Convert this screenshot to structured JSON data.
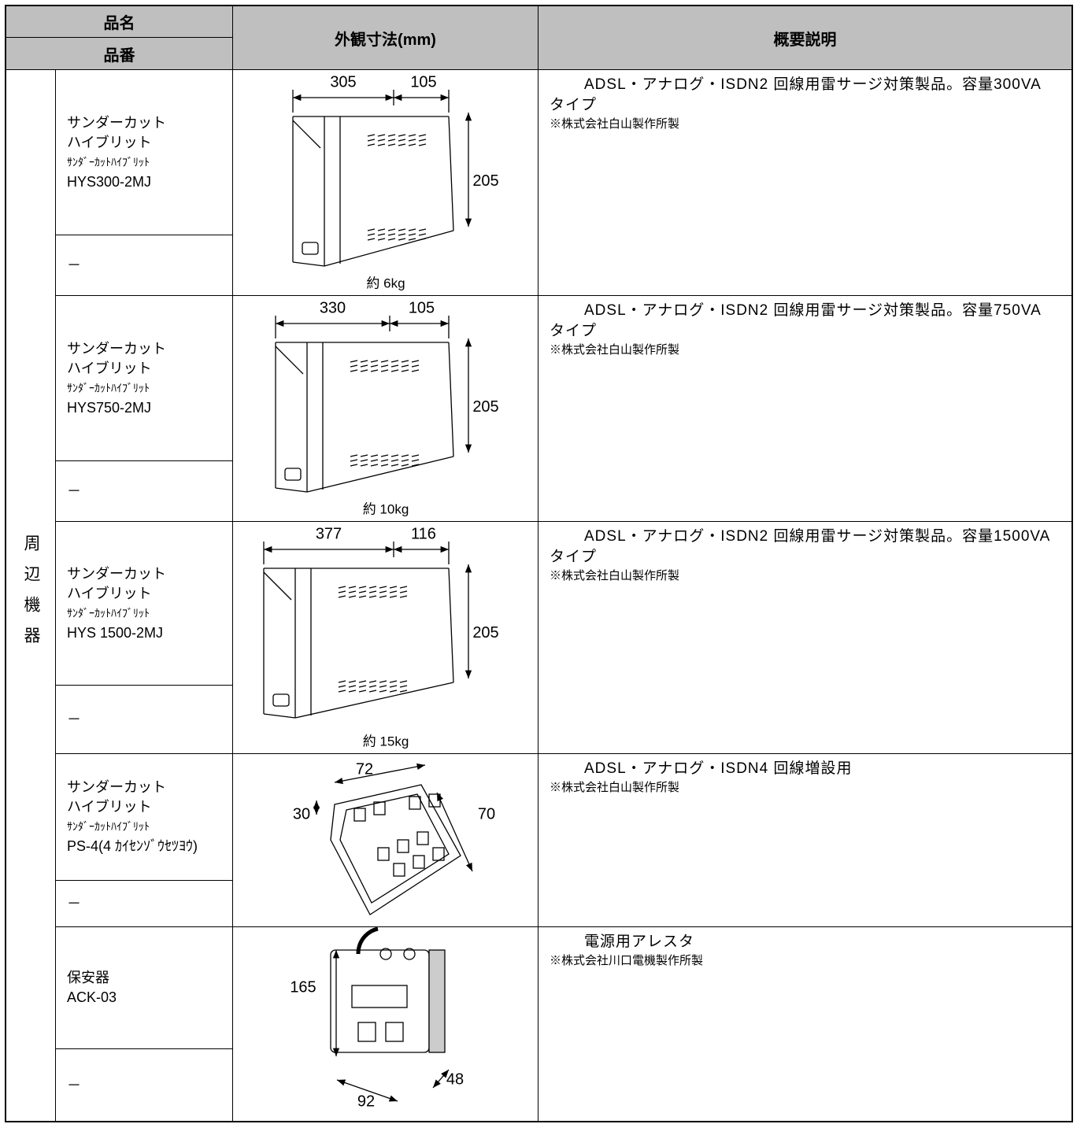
{
  "header": {
    "name": "品名",
    "number": "品番",
    "dimensions": "外観寸法(mm)",
    "description": "概要説明"
  },
  "category": "周辺機器",
  "products": [
    {
      "name_lines": [
        "サンダーカット",
        "ハイブリット",
        "ｻﾝﾀﾞｰｶｯﾄﾊｲﾌﾞﾘｯﾄ",
        "HYS300-2MJ"
      ],
      "number": "－",
      "dimensions": {
        "width": 305,
        "depth": 105,
        "height": 205
      },
      "weight": "約 6kg",
      "description": [
        "ADSL・アナログ・ISDN2 回線用雷サージ対策製品。容量300VA タイプ",
        "※株式会社白山製作所製"
      ]
    },
    {
      "name_lines": [
        "サンダーカット",
        "ハイブリット",
        "ｻﾝﾀﾞｰｶｯﾄﾊｲﾌﾞﾘｯﾄ",
        "HYS750-2MJ"
      ],
      "number": "－",
      "dimensions": {
        "width": 330,
        "depth": 105,
        "height": 205
      },
      "weight": "約 10kg",
      "description": [
        "ADSL・アナログ・ISDN2 回線用雷サージ対策製品。容量750VA タイプ",
        "※株式会社白山製作所製"
      ]
    },
    {
      "name_lines": [
        "サンダーカット",
        "ハイブリット",
        "ｻﾝﾀﾞｰｶｯﾄﾊｲﾌﾞﾘｯﾄ",
        "HYS 1500-2MJ"
      ],
      "number": "－",
      "dimensions": {
        "width": 377,
        "depth": 116,
        "height": 205
      },
      "weight": "約 15kg",
      "description": [
        "ADSL・アナログ・ISDN2 回線用雷サージ対策製品。容量1500VA タイプ",
        "※株式会社白山製作所製"
      ]
    },
    {
      "name_lines": [
        "サンダーカット",
        "ハイブリット",
        "ｻﾝﾀﾞｰｶｯﾄﾊｲﾌﾞﾘｯﾄ",
        "PS-4(4 ｶｲｾﾝｿﾞｳｾﾂﾖｳ)"
      ],
      "number": "－",
      "dimensions": {
        "width": 72,
        "height": 30,
        "depth": 70
      },
      "description": [
        "ADSL・アナログ・ISDN4 回線増設用",
        "※株式会社白山製作所製"
      ]
    },
    {
      "name_lines": [
        "保安器",
        "ACK-03"
      ],
      "number": "－",
      "dimensions": {
        "height": 165,
        "width": 92,
        "depth": 48
      },
      "description": [
        "電源用アレスタ",
        "※株式会社川口電機製作所製"
      ]
    }
  ]
}
